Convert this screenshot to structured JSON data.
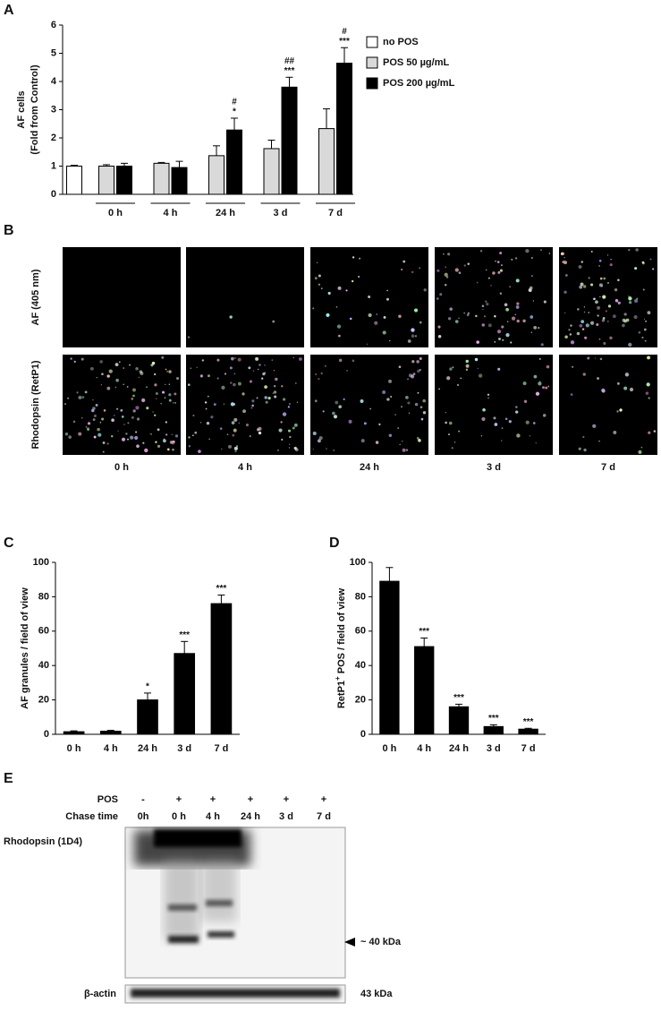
{
  "panel_labels": [
    "A",
    "B",
    "C",
    "D",
    "E"
  ],
  "chart_data": [
    {
      "type": "bar",
      "categories": [
        null,
        "0 h",
        "4 h",
        "24 h",
        "3 d",
        "7 d"
      ],
      "ylabel": [
        "AF cells",
        "(Fold from Control)"
      ],
      "ylim": [
        0,
        6
      ],
      "yticks": [
        0,
        1,
        2,
        3,
        4,
        5,
        6
      ],
      "series": [
        {
          "name": "no POS",
          "color": "#ffffff",
          "values": [
            1.0,
            null,
            null,
            null,
            null,
            null
          ],
          "errors": [
            0.03,
            null,
            null,
            null,
            null,
            null
          ],
          "stars": [
            null,
            null,
            null,
            null,
            null,
            null
          ],
          "hashes": [
            null,
            null,
            null,
            null,
            null,
            null
          ]
        },
        {
          "name": "POS 50 µg/mL",
          "color": "#d9d9d9",
          "values": [
            null,
            1.0,
            1.1,
            1.37,
            1.62,
            2.33
          ],
          "errors": [
            null,
            0.05,
            0.03,
            0.35,
            0.3,
            0.7
          ],
          "stars": [
            null,
            null,
            null,
            null,
            null,
            null
          ],
          "hashes": [
            null,
            null,
            null,
            null,
            null,
            null
          ]
        },
        {
          "name": "POS 200 µg/mL",
          "color": "#000000",
          "values": [
            null,
            1.0,
            0.95,
            2.28,
            3.8,
            4.65
          ],
          "errors": [
            null,
            0.1,
            0.22,
            0.42,
            0.35,
            0.55
          ],
          "stars": [
            null,
            null,
            null,
            "*",
            "***",
            "***"
          ],
          "hashes": [
            null,
            null,
            null,
            "#",
            "##",
            "#"
          ]
        }
      ]
    },
    {
      "type": "bar",
      "categories": [
        "0 h",
        "4 h",
        "24 h",
        "3 d",
        "7 d"
      ],
      "ylabel": "AF granules / field of view",
      "ylim": [
        0,
        100
      ],
      "yticks": [
        0,
        20,
        40,
        60,
        80,
        100
      ],
      "series": [
        {
          "color": "#000000",
          "values": [
            1.5,
            1.8,
            20,
            47,
            76
          ],
          "errors": [
            0.5,
            0.5,
            4,
            7,
            5
          ],
          "stars": [
            null,
            null,
            "*",
            "***",
            "***"
          ]
        }
      ]
    },
    {
      "type": "bar",
      "categories": [
        "0 h",
        "4 h",
        "24 h",
        "3 d",
        "7 d"
      ],
      "ylabel": "RetP1",
      "ylabel_sup": "+",
      "ylabel_rest": " POS / field of view",
      "ylim": [
        0,
        100
      ],
      "yticks": [
        0,
        20,
        40,
        60,
        80,
        100
      ],
      "series": [
        {
          "color": "#000000",
          "values": [
            89,
            51,
            16,
            4.5,
            3
          ],
          "errors": [
            8,
            5,
            1.5,
            1,
            0.5
          ],
          "stars": [
            null,
            "***",
            "***",
            "***",
            "***"
          ]
        }
      ]
    }
  ],
  "images": {
    "rows": [
      "AF (405 nm)",
      "Rhodopsin (RetP1)"
    ],
    "columns": [
      "0 h",
      "4 h",
      "24 h",
      "3 d",
      "7 d"
    ]
  },
  "blot": {
    "pos_label": "POS",
    "pos": [
      "-",
      "+",
      "+",
      "+",
      "+",
      "+"
    ],
    "chase_label": "Chase time",
    "chase": [
      "0h",
      "0 h",
      "4 h",
      "24 h",
      "3 d",
      "7 d"
    ],
    "band_label": "Rhodopsin (1D4)",
    "marker": "~ 40 kDa",
    "actin_label": "β-actin",
    "actin_marker": "43 kDa"
  }
}
